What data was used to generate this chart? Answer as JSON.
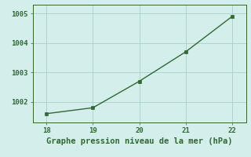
{
  "x": [
    18,
    19,
    20,
    21,
    22
  ],
  "y": [
    1001.6,
    1001.8,
    1002.7,
    1003.7,
    1004.9
  ],
  "xlim": [
    17.7,
    22.3
  ],
  "ylim": [
    1001.3,
    1005.3
  ],
  "xticks": [
    18,
    19,
    20,
    21,
    22
  ],
  "yticks": [
    1002,
    1003,
    1004,
    1005
  ],
  "xlabel": "Graphe pression niveau de la mer (hPa)",
  "line_color": "#2d6a2d",
  "marker": "s",
  "marker_size": 2.5,
  "line_width": 1.0,
  "bg_color": "#d4eeeb",
  "grid_color": "#aacfcc",
  "tick_fontsize": 6.5,
  "xlabel_fontsize": 7.5
}
